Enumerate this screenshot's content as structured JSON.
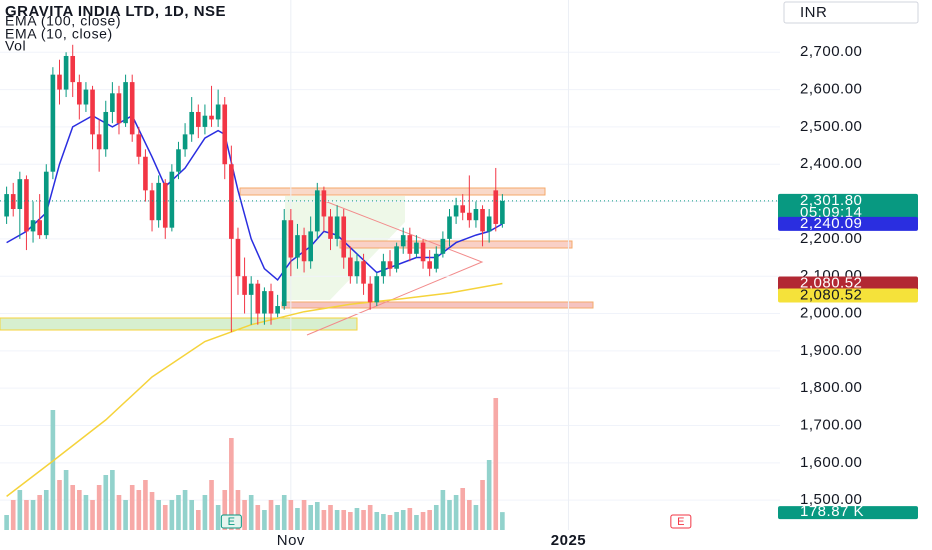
{
  "chart_data": {
    "type": "candlestick",
    "title": "GRAVITA INDIA LTD, 1D, NSE",
    "currency": "INR",
    "up_color": "#089981",
    "down_color": "#f23645",
    "open": [
      2260,
      2320,
      2280,
      2360,
      2220,
      2250,
      2210,
      2380,
      2640,
      2600,
      2690,
      2620,
      2560,
      2600,
      2480,
      2440,
      2540,
      2590,
      2510,
      2620,
      2480,
      2420,
      2330,
      2250,
      2350,
      2230,
      2380,
      2440,
      2480,
      2540,
      2500,
      2530,
      2520,
      2560,
      2400,
      2200,
      2100,
      2050,
      2080,
      2000,
      2060,
      2000,
      2020,
      2250,
      2150,
      2210,
      2140,
      2220,
      2330,
      2260,
      2200,
      2260,
      2150,
      2100,
      2140,
      2080,
      2030,
      2100,
      2140,
      2120,
      2180,
      2210,
      2160,
      2190,
      2140,
      2120,
      2160,
      2200,
      2260,
      2290,
      2270,
      2250,
      2280,
      2220,
      2330,
      2240
    ],
    "high": [
      2340,
      2350,
      2380,
      2370,
      2300,
      2320,
      2400,
      2660,
      2680,
      2700,
      2720,
      2640,
      2620,
      2610,
      2520,
      2570,
      2620,
      2610,
      2640,
      2640,
      2500,
      2440,
      2350,
      2370,
      2360,
      2400,
      2460,
      2510,
      2580,
      2560,
      2560,
      2610,
      2600,
      2580,
      2450,
      2230,
      2150,
      2100,
      2090,
      2070,
      2080,
      2050,
      2280,
      2280,
      2240,
      2230,
      2260,
      2350,
      2340,
      2280,
      2290,
      2280,
      2180,
      2160,
      2160,
      2100,
      2110,
      2160,
      2170,
      2190,
      2230,
      2230,
      2210,
      2200,
      2170,
      2180,
      2220,
      2280,
      2310,
      2320,
      2370,
      2300,
      2290,
      2280,
      2390,
      2320
    ],
    "low": [
      2240,
      2260,
      2200,
      2170,
      2190,
      2200,
      2200,
      2360,
      2560,
      2580,
      2580,
      2520,
      2540,
      2440,
      2380,
      2420,
      2510,
      2480,
      2500,
      2460,
      2400,
      2300,
      2220,
      2230,
      2200,
      2220,
      2360,
      2420,
      2460,
      2470,
      2480,
      2500,
      2500,
      2360,
      1950,
      2050,
      2000,
      1970,
      1970,
      1970,
      1970,
      1990,
      2010,
      2100,
      2120,
      2110,
      2120,
      2200,
      2220,
      2170,
      2180,
      2120,
      2080,
      2080,
      2050,
      2010,
      2020,
      2080,
      2100,
      2110,
      2160,
      2140,
      2150,
      2120,
      2100,
      2110,
      2150,
      2180,
      2240,
      2250,
      2230,
      2230,
      2180,
      2190,
      2220,
      2230
    ],
    "close": [
      2320,
      2280,
      2360,
      2220,
      2250,
      2210,
      2380,
      2640,
      2600,
      2690,
      2620,
      2560,
      2600,
      2480,
      2440,
      2540,
      2590,
      2510,
      2620,
      2480,
      2420,
      2330,
      2250,
      2350,
      2230,
      2380,
      2440,
      2480,
      2540,
      2500,
      2530,
      2520,
      2560,
      2400,
      2200,
      2100,
      2050,
      2080,
      2000,
      2060,
      2000,
      2020,
      2250,
      2150,
      2210,
      2140,
      2220,
      2330,
      2260,
      2200,
      2260,
      2150,
      2100,
      2140,
      2080,
      2030,
      2100,
      2140,
      2120,
      2180,
      2210,
      2160,
      2190,
      2140,
      2120,
      2160,
      2200,
      2260,
      2290,
      2270,
      2250,
      2280,
      2220,
      2260,
      2240,
      2301.8
    ],
    "xlim": [
      -1,
      117
    ],
    "xticks": [
      {
        "value": 43,
        "label": "Nov"
      },
      {
        "value": 85,
        "label": "2025"
      }
    ],
    "ylim": [
      1420,
      2840
    ],
    "yticks": [
      {
        "value": 1500,
        "label": "1,500.00"
      },
      {
        "value": 1600,
        "label": "1,600.00"
      },
      {
        "value": 1700,
        "label": "1,700.00"
      },
      {
        "value": 1800,
        "label": "1,800.00"
      },
      {
        "value": 1900,
        "label": "1,900.00"
      },
      {
        "value": 2000,
        "label": "2,000.00"
      },
      {
        "value": 2100,
        "label": "2,100.00"
      },
      {
        "value": 2200,
        "label": "2,200.00"
      },
      {
        "value": 2300,
        "label": "2,300.00"
      },
      {
        "value": 2400,
        "label": "2,400.00"
      },
      {
        "value": 2500,
        "label": "2,500.00"
      },
      {
        "value": 2600,
        "label": "2,600.00"
      },
      {
        "value": 2700,
        "label": "2,700.00"
      }
    ],
    "grid": true,
    "emas": [
      {
        "name": "EMA (100, close)",
        "color": "#f5d33b",
        "x": [
          0,
          7,
          15,
          22,
          30,
          37,
          45,
          52,
          60,
          67,
          75
        ],
        "values": [
          1510,
          1605,
          1715,
          1830,
          1925,
          1970,
          2005,
          2025,
          2040,
          2055,
          2080.52
        ]
      },
      {
        "name": "EMA (10, close)",
        "color": "#2a2ee0",
        "x": [
          0,
          3,
          6,
          8,
          10,
          13,
          16,
          19,
          22,
          24,
          27,
          30,
          32,
          33,
          35,
          37,
          39,
          41,
          43,
          46,
          48,
          50,
          53,
          56,
          59,
          62,
          65,
          68,
          71,
          73,
          75
        ],
        "values": [
          2190,
          2220,
          2270,
          2400,
          2500,
          2530,
          2500,
          2530,
          2420,
          2340,
          2390,
          2470,
          2490,
          2480,
          2330,
          2200,
          2120,
          2090,
          2140,
          2180,
          2220,
          2210,
          2160,
          2110,
          2130,
          2150,
          2150,
          2190,
          2210,
          2220,
          2240.09
        ]
      }
    ],
    "volume": {
      "name": "Vol",
      "up_color": "#92d2cc",
      "down_color": "#f7a9a7",
      "ylim": [
        0,
        2000000
      ],
      "values": [
        150000,
        300000,
        400000,
        300000,
        300000,
        350000,
        400000,
        1200000,
        500000,
        600000,
        450000,
        400000,
        350000,
        300000,
        450000,
        550000,
        600000,
        350000,
        300000,
        450000,
        400000,
        500000,
        380000,
        300000,
        250000,
        300000,
        350000,
        400000,
        300000,
        200000,
        350000,
        500000,
        250000,
        400000,
        920000,
        400000,
        300000,
        350000,
        250000,
        200000,
        300000,
        250000,
        350000,
        300000,
        220000,
        300000,
        250000,
        280000,
        200000,
        250000,
        200000,
        200000,
        180000,
        220000,
        200000,
        250000,
        180000,
        160000,
        150000,
        180000,
        200000,
        220000,
        150000,
        180000,
        200000,
        250000,
        400000,
        300000,
        350000,
        420000,
        300000,
        250000,
        500000,
        700000,
        1320000,
        178870
      ],
      "last_label": {
        "value": 178870,
        "label": "178.87 K"
      }
    },
    "price_labels": [
      {
        "value": 2301.8,
        "label": "2,301.80",
        "sublabel": "05:09:14",
        "color": "#089981",
        "text_color": "#ffffff"
      },
      {
        "value": 2240.09,
        "label": "2,240.09",
        "color": "#2a2ee0",
        "text_color": "#ffffff"
      },
      {
        "value": 2080.52,
        "label": "2,080.52",
        "color": "#b22833",
        "text_color": "#ffffff"
      },
      {
        "value": 2080.52,
        "label": "2,080.52",
        "color": "#f5e23a",
        "text_color": "#131722"
      }
    ],
    "events": [
      {
        "x": 34,
        "label": "E",
        "color": "#089981"
      },
      {
        "x": 102,
        "label": "E",
        "color": "#f23645"
      }
    ]
  }
}
